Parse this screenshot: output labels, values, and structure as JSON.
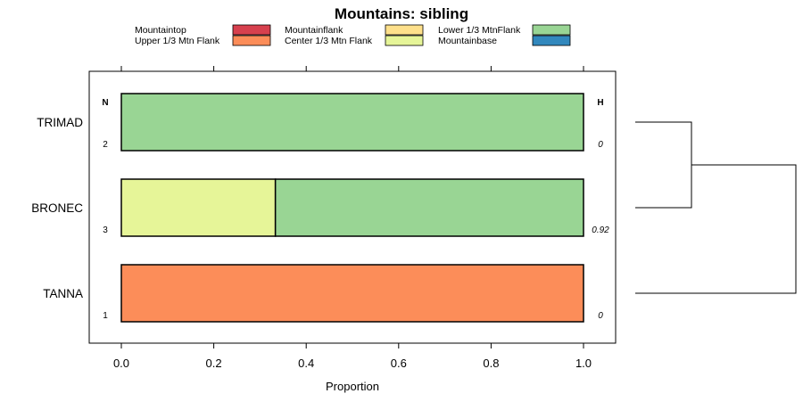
{
  "chart_data": {
    "type": "bar",
    "orientation": "horizontal",
    "stacked": true,
    "title": "Mountains: sibling",
    "xlabel": "Proportion",
    "ylabel": "",
    "xlim": [
      0,
      1
    ],
    "x_ticks": [
      "0.0",
      "0.2",
      "0.4",
      "0.6",
      "0.8",
      "1.0"
    ],
    "categories": [
      "TRIMAD",
      "BRONEC",
      "TANNA"
    ],
    "n_header": "N",
    "h_header": "H",
    "n_values": [
      "2",
      "3",
      "1"
    ],
    "h_values": [
      "0",
      "0.92",
      "0"
    ],
    "series": [
      {
        "name": "Mountaintop",
        "color": "#d7404e",
        "values": [
          0,
          0,
          0
        ]
      },
      {
        "name": "Upper 1/3 Mtn Flank",
        "color": "#fc8d59",
        "values": [
          0,
          0,
          1
        ]
      },
      {
        "name": "Mountainflank",
        "color": "#fee08b",
        "values": [
          0,
          0,
          0
        ]
      },
      {
        "name": "Center 1/3 Mtn Flank",
        "color": "#e6f598",
        "values": [
          0,
          0.3333,
          0
        ]
      },
      {
        "name": "Lower 1/3 MtnFlank",
        "color": "#99d594",
        "values": [
          1,
          0.6667,
          0
        ]
      },
      {
        "name": "Mountainbase",
        "color": "#3288bd",
        "values": [
          0,
          0,
          0
        ]
      }
    ],
    "dendrogram": {
      "merges": [
        {
          "children": [
            "TRIMAD",
            "BRONEC"
          ],
          "height": 0.35
        },
        {
          "children": [
            "TRIMAD+BRONEC",
            "TANNA"
          ],
          "height": 1.0
        }
      ]
    }
  }
}
